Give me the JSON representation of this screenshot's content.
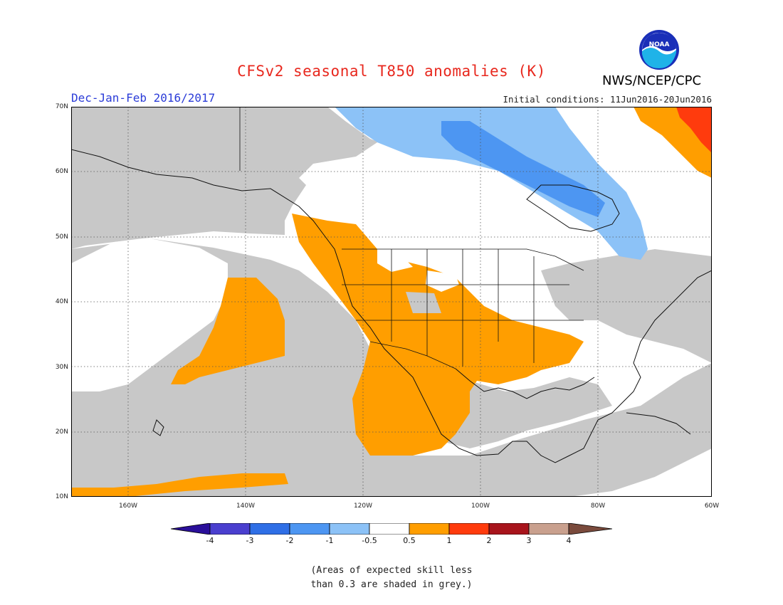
{
  "title": "CFSv2 seasonal T850 anomalies (K)",
  "period": "Dec-Jan-Feb 2016/2017",
  "initial_conditions": "Initial conditions: 11Jun2016-20Jun2016",
  "agency": "NWS/NCEP/CPC",
  "logo_text": "NOAA",
  "lat_labels": [
    "70N",
    "60N",
    "50N",
    "40N",
    "30N",
    "20N",
    "10N"
  ],
  "lon_labels": [
    "160W",
    "140W",
    "120W",
    "100W",
    "80W",
    "60W"
  ],
  "colorbar": {
    "labels": [
      "-4",
      "-3",
      "-2",
      "-1",
      "-0.5",
      "0.5",
      "1",
      "2",
      "3",
      "4"
    ],
    "colors": [
      "#2a0f9a",
      "#4a3fcf",
      "#2f6fe6",
      "#4d96f2",
      "#8cc2f7",
      "#ffffff",
      "#ff9e00",
      "#ff3b0d",
      "#a8141c",
      "#c9a08e",
      "#7a4a3c"
    ]
  },
  "map_colors": {
    "grey": "#c8c8c8",
    "orange": "#ff9e00",
    "red_orange": "#ff3b0d",
    "light_blue": "#8cc2f7",
    "blue": "#4d96f2"
  },
  "note_lines": [
    "(Areas of expected skill less",
    "than 0.3 are shaded in grey.)"
  ]
}
